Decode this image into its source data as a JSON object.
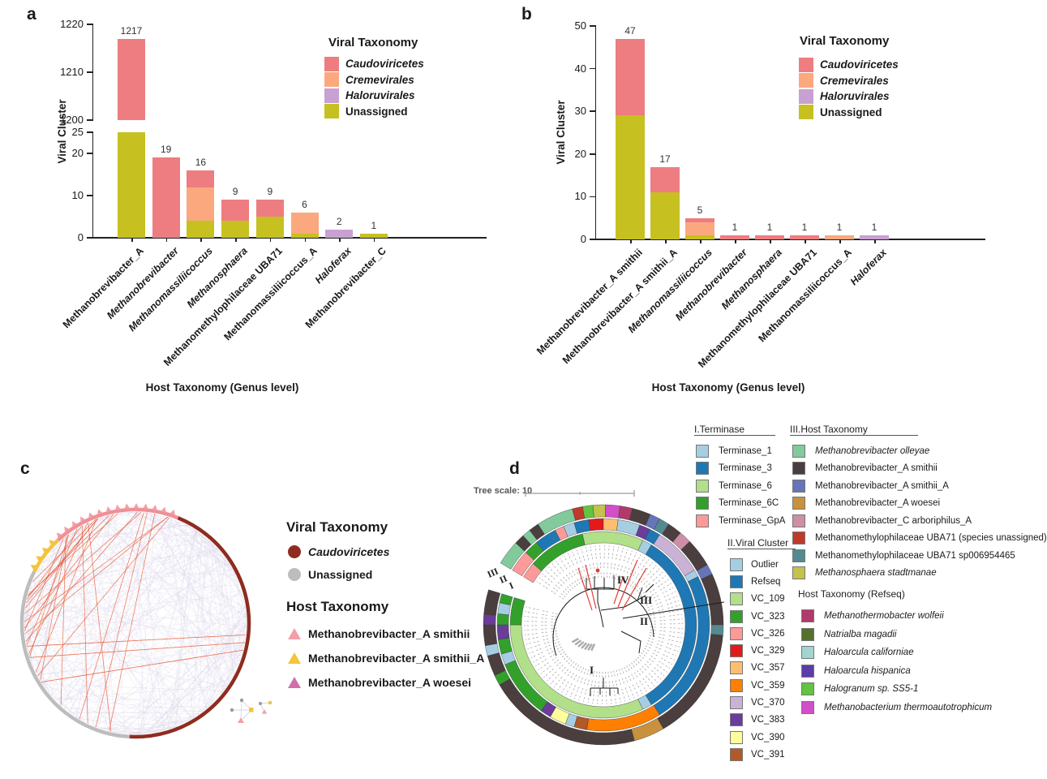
{
  "figure": {
    "panel_a": {
      "label": "a",
      "ylabel": "Viral Cluster",
      "xlabel": "Host Taxonomy (Genus level)",
      "legend_title": "Viral Taxonomy",
      "legend": [
        {
          "label": "Caudoviricetes",
          "color": "#ED7D80",
          "italic": true
        },
        {
          "label": "Cremevirales",
          "color": "#FBA87E",
          "italic": true
        },
        {
          "label": "Haloruvirales",
          "color": "#C9A0D2",
          "italic": true
        },
        {
          "label": "Unassigned",
          "color": "#C6C020",
          "italic": false
        }
      ]
    },
    "panel_b": {
      "label": "b",
      "ylabel": "Viral Cluster",
      "xlabel": "Host Taxonomy (Genus level)",
      "legend_title": "Viral Taxonomy",
      "legend": [
        {
          "label": "Caudoviricetes",
          "color": "#ED7D80",
          "italic": true
        },
        {
          "label": "Cremevirales",
          "color": "#FBA87E",
          "italic": true
        },
        {
          "label": "Haloruvirales",
          "color": "#C9A0D2",
          "italic": true
        },
        {
          "label": "Unassigned",
          "color": "#C6C020",
          "italic": false
        }
      ]
    },
    "panel_c": {
      "label": "c",
      "viral_legend_title": "Viral Taxonomy",
      "viral_legend": [
        {
          "label": "Caudoviricetes",
          "color": "#8E2C20",
          "shape": "circle",
          "italic": true
        },
        {
          "label": "Unassigned",
          "color": "#BDBDBD",
          "shape": "circle",
          "italic": false
        }
      ],
      "host_legend_title": "Host Taxonomy",
      "host_legend": [
        {
          "label": "Methanobrevibacter_A smithii",
          "color": "#F2A0A8",
          "shape": "triangle"
        },
        {
          "label": "Methanobrevibacter_A smithii_A",
          "color": "#F5C33C",
          "shape": "triangle"
        },
        {
          "label": "Methanobrevibacter_A woesei",
          "color": "#D06FA8",
          "shape": "triangle"
        }
      ]
    },
    "panel_d": {
      "label": "d",
      "tree_scale_label": "Tree scale: 10",
      "ring_labels": [
        "III",
        "II",
        "I"
      ],
      "clade_labels": [
        "I",
        "II",
        "III",
        "IV"
      ],
      "legend_terminase_title": "I.Terminase",
      "legend_terminase": [
        {
          "label": "Terminase_1",
          "color": "#A6CEE3"
        },
        {
          "label": "Terminase_3",
          "color": "#1F78B4"
        },
        {
          "label": "Terminase_6",
          "color": "#B2DF8A"
        },
        {
          "label": "Terminase_6C",
          "color": "#33A02C"
        },
        {
          "label": "Terminase_GpA",
          "color": "#FB9A99"
        }
      ],
      "legend_vc_title": "II.Viral Cluster",
      "legend_vc": [
        {
          "label": "Outlier",
          "color": "#A6CEE3"
        },
        {
          "label": "Refseq",
          "color": "#1F78B4"
        },
        {
          "label": "VC_109",
          "color": "#B2DF8A"
        },
        {
          "label": "VC_323",
          "color": "#33A02C"
        },
        {
          "label": "VC_326",
          "color": "#FB9A99"
        },
        {
          "label": "VC_329",
          "color": "#E31A1C"
        },
        {
          "label": "VC_357",
          "color": "#FDBF6F"
        },
        {
          "label": "VC_359",
          "color": "#FF7F00"
        },
        {
          "label": "VC_370",
          "color": "#CAB2D6"
        },
        {
          "label": "VC_383",
          "color": "#6A3D9A"
        },
        {
          "label": "VC_390",
          "color": "#FFFF99"
        },
        {
          "label": "VC_391",
          "color": "#B15928"
        }
      ],
      "legend_host_title": "III.Host Taxonomy",
      "legend_host": [
        {
          "label": "Methanobrevibacter olleyae",
          "color": "#82CA9C",
          "italic": true
        },
        {
          "label": "Methanobrevibacter_A smithii",
          "color": "#4A3E3E",
          "italic": false
        },
        {
          "label": "Methanobrevibacter_A smithii_A",
          "color": "#6674B8",
          "italic": false
        },
        {
          "label": "Methanobrevibacter_A woesei",
          "color": "#C8913D",
          "italic": false
        },
        {
          "label": "Methanobrevibacter_C arboriphilus_A",
          "color": "#CD8FA6",
          "italic": false
        },
        {
          "label": "Methanomethylophilaceae UBA71 (species unassigned)",
          "color": "#C03A2B",
          "italic": false
        },
        {
          "label": "Methanomethylophilaceae UBA71 sp006954465",
          "color": "#538B90",
          "italic": false
        },
        {
          "label": "Methanosphaera stadtmanae",
          "color": "#C2C24D",
          "italic": true
        }
      ],
      "legend_refseq_title": "Host Taxonomy (Refseq)",
      "legend_refseq": [
        {
          "label": "Methanothermobacter wolfeii",
          "color": "#B03A6A",
          "italic": true
        },
        {
          "label": "Natrialba magadii",
          "color": "#56702E",
          "italic": true
        },
        {
          "label": "Haloarcula californiae",
          "color": "#A2D4D0",
          "italic": true
        },
        {
          "label": "Haloarcula hispanica",
          "color": "#5B3CA8",
          "italic": true
        },
        {
          "label": "Halogranum sp. SS5-1",
          "color": "#62C43F",
          "italic": true
        },
        {
          "label": "Methanobacterium thermoautotrophicum",
          "color": "#D24FC8",
          "italic": true
        }
      ]
    }
  },
  "chart_data": [
    {
      "id": "a",
      "type": "bar",
      "stacked": true,
      "broken_axis": true,
      "title": "",
      "xlabel": "Host Taxonomy (Genus level)",
      "ylabel": "Viral Cluster",
      "top_axis": {
        "range": [
          1200,
          1220
        ],
        "ticks": [
          1200,
          1210,
          1220
        ]
      },
      "bottom_axis": {
        "range": [
          0,
          25
        ],
        "ticks": [
          0,
          10,
          20,
          25
        ]
      },
      "series_colors": {
        "Caudoviricetes": "#ED7D80",
        "Cremevirales": "#FBA87E",
        "Haloruvirales": "#C9A0D2",
        "Unassigned": "#C6C020"
      },
      "bars": [
        {
          "label": "Methanobrevibacter_A",
          "italic": false,
          "total": 1217,
          "bottom_segments": [
            {
              "s": "Unassigned",
              "v": 25
            }
          ],
          "top_segments": [
            {
              "s": "Caudoviricetes",
              "from": 1200,
              "to": 1217
            }
          ]
        },
        {
          "label": "Methanobrevibacter",
          "italic": true,
          "total": 19,
          "bottom_segments": [
            {
              "s": "Caudoviricetes",
              "v": 19
            }
          ]
        },
        {
          "label": "Methanomassiliicoccus",
          "italic": true,
          "total": 16,
          "bottom_segments": [
            {
              "s": "Unassigned",
              "v": 4
            },
            {
              "s": "Cremevirales",
              "v": 8
            },
            {
              "s": "Caudoviricetes",
              "v": 4
            }
          ]
        },
        {
          "label": "Methanosphaera",
          "italic": true,
          "total": 9,
          "bottom_segments": [
            {
              "s": "Unassigned",
              "v": 4
            },
            {
              "s": "Caudoviricetes",
              "v": 5
            }
          ]
        },
        {
          "label": "Methanomethylophilaceae UBA71",
          "italic": false,
          "total": 9,
          "bottom_segments": [
            {
              "s": "Unassigned",
              "v": 5
            },
            {
              "s": "Caudoviricetes",
              "v": 4
            }
          ]
        },
        {
          "label": "Methanomassiliicoccus_A",
          "italic": false,
          "total": 6,
          "bottom_segments": [
            {
              "s": "Unassigned",
              "v": 1
            },
            {
              "s": "Cremevirales",
              "v": 5
            }
          ]
        },
        {
          "label": "Haloferax",
          "italic": true,
          "total": 2,
          "bottom_segments": [
            {
              "s": "Haloruvirales",
              "v": 2
            }
          ]
        },
        {
          "label": "Methanobrevibacter_C",
          "italic": false,
          "total": 1,
          "bottom_segments": [
            {
              "s": "Unassigned",
              "v": 1
            }
          ]
        }
      ]
    },
    {
      "id": "b",
      "type": "bar",
      "stacked": true,
      "title": "",
      "xlabel": "Host Taxonomy (Genus level)",
      "ylabel": "Viral Cluster",
      "axis": {
        "range": [
          0,
          50
        ],
        "ticks": [
          0,
          10,
          20,
          30,
          40,
          50
        ]
      },
      "series_colors": {
        "Caudoviricetes": "#ED7D80",
        "Cremevirales": "#FBA87E",
        "Haloruvirales": "#C9A0D2",
        "Unassigned": "#C6C020"
      },
      "bars": [
        {
          "label": "Methanobrevibacter_A smithii",
          "italic": false,
          "total": 47,
          "segments": [
            {
              "s": "Unassigned",
              "v": 29
            },
            {
              "s": "Caudoviricetes",
              "v": 18
            }
          ]
        },
        {
          "label": "Methanobrevibacter_A smithii_A",
          "italic": false,
          "total": 17,
          "segments": [
            {
              "s": "Unassigned",
              "v": 11
            },
            {
              "s": "Caudoviricetes",
              "v": 6
            }
          ]
        },
        {
          "label": "Methanomassiliicoccus",
          "italic": true,
          "total": 5,
          "segments": [
            {
              "s": "Unassigned",
              "v": 1
            },
            {
              "s": "Cremevirales",
              "v": 3
            },
            {
              "s": "Caudoviricetes",
              "v": 1
            }
          ]
        },
        {
          "label": "Methanobrevibacter",
          "italic": true,
          "total": 1,
          "segments": [
            {
              "s": "Caudoviricetes",
              "v": 1
            }
          ]
        },
        {
          "label": "Methanosphaera",
          "italic": true,
          "total": 1,
          "segments": [
            {
              "s": "Caudoviricetes",
              "v": 1
            }
          ]
        },
        {
          "label": "Methanomethylophilaceae UBA71",
          "italic": false,
          "total": 1,
          "segments": [
            {
              "s": "Caudoviricetes",
              "v": 1
            }
          ]
        },
        {
          "label": "Methanomassiliicoccus_A",
          "italic": false,
          "total": 1,
          "segments": [
            {
              "s": "Cremevirales",
              "v": 1
            }
          ]
        },
        {
          "label": "Haloferax",
          "italic": true,
          "total": 1,
          "segments": [
            {
              "s": "Haloruvirales",
              "v": 1
            }
          ]
        }
      ]
    },
    {
      "id": "c",
      "type": "chord_network",
      "rim_arcs": [
        {
          "name": "Caudoviricetes",
          "color": "#8E2C20",
          "start": 22,
          "end": 183
        },
        {
          "name": "Unassigned",
          "color": "#BDBDBD",
          "start": 183,
          "end": 297
        },
        {
          "name": "Methanobrevibacter_A smithii_A hosts",
          "color": "#F5C33C",
          "start": 297,
          "end": 317
        },
        {
          "name": "Methanobrevibacter_A smithii hosts",
          "color": "#F08F96",
          "start": 317,
          "end": 382
        }
      ],
      "edge_colors": {
        "intra": "#DED9EC",
        "highlight": "#E8502A"
      }
    },
    {
      "id": "d",
      "type": "circular_tree",
      "tree_scale": 10,
      "gap": [
        287,
        301
      ],
      "rings": {
        "I": [
          [
            "#FB9A99",
            301,
            311
          ],
          [
            "#33A02C",
            311,
            347
          ],
          [
            "#B2DF8A",
            347,
            385
          ],
          [
            "#A6CEE3",
            385,
            391
          ],
          [
            "#1F78B4",
            391,
            509
          ],
          [
            "#A6CEE3",
            509,
            515
          ],
          [
            "#B2DF8A",
            515,
            630
          ],
          [
            "#33A02C",
            630,
            647
          ]
        ],
        "II": [
          [
            "#FB9A99",
            301,
            313
          ],
          [
            "#33A02C",
            313,
            321
          ],
          [
            "#1F78B4",
            321,
            333
          ],
          [
            "#FB9A99",
            333,
            338
          ],
          [
            "#A6CEE3",
            338,
            344
          ],
          [
            "#1F78B4",
            344,
            352
          ],
          [
            "#E31A1C",
            352,
            360
          ],
          [
            "#FDBF6F",
            360,
            368
          ],
          [
            "#A6CEE3",
            368,
            380
          ],
          [
            "#6A3D9A",
            380,
            386
          ],
          [
            "#1F78B4",
            386,
            392
          ],
          [
            "#CAB2D6",
            392,
            419
          ],
          [
            "#A6CEE3",
            419,
            423
          ],
          [
            "#1F78B4",
            423,
            508
          ],
          [
            "#FF7F00",
            508,
            549
          ],
          [
            "#B15928",
            549,
            556
          ],
          [
            "#A6CEE3",
            556,
            561
          ],
          [
            "#FFFF99",
            561,
            570
          ],
          [
            "#6A3D9A",
            570,
            576
          ],
          [
            "#33A02C",
            576,
            608
          ],
          [
            "#A6CEE3",
            608,
            614
          ],
          [
            "#33A02C",
            614,
            622
          ],
          [
            "#6A3D9A",
            622,
            630
          ],
          [
            "#33A02C",
            630,
            636
          ],
          [
            "#A6CEE3",
            636,
            642
          ],
          [
            "#33A02C",
            642,
            647
          ]
        ],
        "III": [
          [
            "#82CA9C",
            301,
            313
          ],
          [
            "#4A3E3E",
            313,
            318
          ],
          [
            "#82CA9C",
            318,
            322
          ],
          [
            "#4A3E3E",
            322,
            327
          ],
          [
            "#82CA9C",
            327,
            345
          ],
          [
            "#C03A2B",
            345,
            350
          ],
          [
            "#62C43F",
            350,
            355
          ],
          [
            "#C2C24D",
            355,
            361
          ],
          [
            "#D24FC8",
            361,
            368
          ],
          [
            "#B03A6A",
            368,
            374
          ],
          [
            "#4A3E3E",
            374,
            383
          ],
          [
            "#6674B8",
            383,
            388
          ],
          [
            "#538B90",
            388,
            393
          ],
          [
            "#4A3E3E",
            393,
            400
          ],
          [
            "#CD8FA6",
            400,
            406
          ],
          [
            "#4A3E3E",
            406,
            420
          ],
          [
            "#6674B8",
            420,
            425
          ],
          [
            "#4A3E3E",
            425,
            450
          ],
          [
            "#538B90",
            450,
            455
          ],
          [
            "#4A3E3E",
            455,
            510
          ],
          [
            "#C8913D",
            510,
            525
          ],
          [
            "#4A3E3E",
            525,
            600
          ],
          [
            "#33A02C",
            600,
            605
          ],
          [
            "#4A3E3E",
            605,
            615
          ],
          [
            "#A6CEE3",
            615,
            620
          ],
          [
            "#4A3E3E",
            620,
            630
          ],
          [
            "#6A3D9A",
            630,
            635
          ],
          [
            "#4A3E3E",
            635,
            647
          ]
        ]
      }
    }
  ]
}
